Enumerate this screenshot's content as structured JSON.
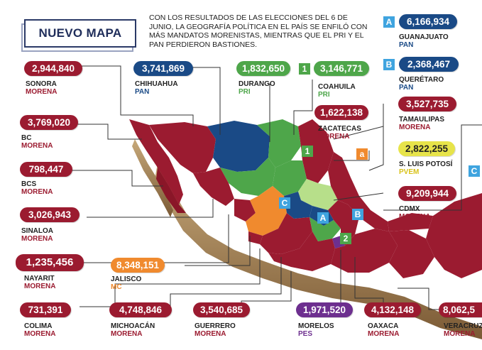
{
  "title": "NUEVO MAPA",
  "intro": "CON LOS RESULTADOS DE LAS ELECCIONES DEL 6 DE JUNIO, LA GEOGRAFÍA POLÍTICA EN EL PAÍS SE ENFILÓ CON MÁS MANDATOS MORENISTAS, MIENTRAS QUE EL PRI Y EL PAN PERDIERON BASTIONES.",
  "colors": {
    "morena": "#9b1b30",
    "pan": "#1a4a86",
    "pri": "#4ea64a",
    "mc": "#f08a2e",
    "pes": "#6d2f8f",
    "pvem": "#e7e44a",
    "badge_blue": "#3fa4df"
  },
  "states": {
    "sonora": {
      "name": "SONORA",
      "votes": "2,944,840",
      "party": "MORENA"
    },
    "chihuahua": {
      "name": "CHIHUAHUA",
      "votes": "3,741,869",
      "party": "PAN"
    },
    "durango": {
      "name": "DURANGO",
      "votes": "1,832,650",
      "party": "PRI"
    },
    "coahuila": {
      "name": "COAHUILA",
      "votes": "3,146,771",
      "party": "PRI",
      "badge": "1"
    },
    "guanajuato": {
      "name": "GUANAJUATO",
      "votes": "6,166,934",
      "party": "PAN",
      "badge": "A"
    },
    "queretaro": {
      "name": "QUERÉTARO",
      "votes": "2,368,467",
      "party": "PAN",
      "badge": "B"
    },
    "bc": {
      "name": "BC",
      "votes": "3,769,020",
      "party": "MORENA"
    },
    "zacatecas": {
      "name": "ZACATECAS",
      "votes": "1,622,138",
      "party": "MORENA"
    },
    "tamaulipas": {
      "name": "TAMAULIPAS",
      "votes": "3,527,735",
      "party": "MORENA"
    },
    "bcs": {
      "name": "BCS",
      "votes": "798,447",
      "party": "MORENA"
    },
    "slp": {
      "name": "S. LUIS POTOSÍ",
      "votes": "2,822,255",
      "party": "PVEM"
    },
    "sinaloa": {
      "name": "SINALOA",
      "votes": "3,026,943",
      "party": "MORENA"
    },
    "cdmx": {
      "name": "CDMX",
      "votes": "9,209,944",
      "party": "MORENA"
    },
    "nayarit": {
      "name": "NAYARIT",
      "votes": "1,235,456",
      "party": "MORENA"
    },
    "jalisco": {
      "name": "JALISCO",
      "votes": "8,348,151",
      "party": "MC"
    },
    "colima": {
      "name": "COLIMA",
      "votes": "731,391",
      "party": "MORENA"
    },
    "michoacan": {
      "name": "MICHOACÁN",
      "votes": "4,748,846",
      "party": "MORENA"
    },
    "guerrero": {
      "name": "GUERRERO",
      "votes": "3,540,685",
      "party": "MORENA"
    },
    "morelos": {
      "name": "MORELOS",
      "votes": "1,971,520",
      "party": "PES"
    },
    "oaxaca": {
      "name": "OAXACA",
      "votes": "4,132,148",
      "party": "MORENA"
    },
    "veracruz": {
      "name": "VERACRUZ",
      "votes": "8,062,5",
      "party": "MORENA"
    }
  },
  "map_badges": {
    "c_left": "C",
    "c_right": "C",
    "a_map": "A",
    "b_map": "B",
    "one_map": "1",
    "two_map": "2",
    "a_orange": "a"
  }
}
